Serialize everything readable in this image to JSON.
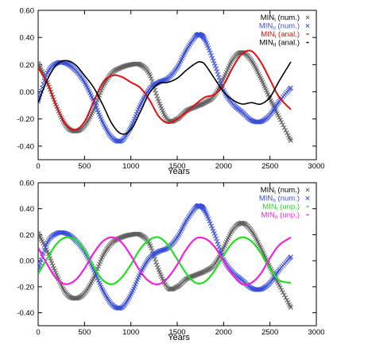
{
  "chart_data": [
    {
      "type": "line",
      "xlabel": "Years",
      "xlim": [
        0,
        3000
      ],
      "ylim": [
        -0.5,
        0.6
      ],
      "xticks": [
        0,
        500,
        1000,
        1500,
        2000,
        2500,
        3000
      ],
      "yticks": [
        -0.4,
        -0.2,
        0.0,
        0.2,
        0.4,
        0.6
      ],
      "xtick_labels": [
        "0",
        "500",
        "1000",
        "1500",
        "2000",
        "2500",
        "3000"
      ],
      "ytick_labels": [
        "-0.40",
        "-0.20",
        "0.00",
        "0.20",
        "0.40",
        "0.60"
      ],
      "legend_placement": "top-right",
      "grid": false,
      "series": [
        {
          "name": "MIN_I (num.)",
          "name_main": "MIN",
          "name_sub": "I",
          "name_suffix": " (num.)",
          "style": "markers",
          "marker": "×",
          "color": "#606060",
          "x": [
            0,
            100,
            200,
            300,
            400,
            500,
            600,
            700,
            800,
            900,
            1000,
            1100,
            1200,
            1300,
            1400,
            1500,
            1600,
            1700,
            1800,
            1900,
            2000,
            2100,
            2200,
            2300,
            2400,
            2500,
            2600,
            2725
          ],
          "y": [
            0.21,
            0.07,
            -0.11,
            -0.25,
            -0.29,
            -0.25,
            -0.13,
            0.04,
            0.14,
            0.18,
            0.2,
            0.2,
            0.13,
            -0.07,
            -0.21,
            -0.2,
            -0.14,
            -0.11,
            -0.08,
            -0.03,
            0.1,
            0.24,
            0.29,
            0.23,
            0.1,
            -0.05,
            -0.19,
            -0.36
          ]
        },
        {
          "name": "MIN_II (num.)",
          "name_main": "MIN",
          "name_sub": "II",
          "name_suffix": " (num.)",
          "style": "markers",
          "marker": "×",
          "color": "#3a4fd8",
          "x": [
            0,
            100,
            200,
            300,
            400,
            500,
            600,
            700,
            800,
            900,
            1000,
            1100,
            1200,
            1300,
            1400,
            1500,
            1600,
            1700,
            1750,
            1800,
            1900,
            2000,
            2100,
            2200,
            2300,
            2400,
            2500,
            2600,
            2725
          ],
          "y": [
            -0.07,
            0.14,
            0.21,
            0.21,
            0.16,
            0.07,
            -0.07,
            -0.23,
            -0.34,
            -0.36,
            -0.26,
            -0.1,
            0.02,
            0.07,
            0.1,
            0.18,
            0.31,
            0.41,
            0.42,
            0.38,
            0.21,
            0.01,
            -0.09,
            -0.15,
            -0.21,
            -0.22,
            -0.17,
            -0.07,
            0.03
          ]
        },
        {
          "name": "MIN_I (anal.)",
          "name_main": "MIN",
          "name_sub": "I",
          "name_suffix": " (anal.)",
          "style": "line",
          "color": "#e01010",
          "width": 2.0,
          "x": [
            0,
            100,
            200,
            300,
            400,
            500,
            600,
            700,
            800,
            900,
            1000,
            1100,
            1200,
            1300,
            1400,
            1500,
            1600,
            1700,
            1800,
            1900,
            2000,
            2100,
            2200,
            2300,
            2400,
            2500,
            2600,
            2725
          ],
          "y": [
            0.18,
            0.06,
            -0.11,
            -0.24,
            -0.28,
            -0.22,
            -0.07,
            0.07,
            0.12,
            0.11,
            0.07,
            0.03,
            -0.06,
            -0.18,
            -0.23,
            -0.2,
            -0.15,
            -0.09,
            -0.04,
            -0.02,
            0.05,
            0.18,
            0.28,
            0.3,
            0.22,
            0.09,
            -0.04,
            -0.13
          ]
        },
        {
          "name": "MIN_II (anal.)",
          "name_main": "MIN",
          "name_sub": "II",
          "name_suffix": " (anal.)",
          "style": "line",
          "color": "#000000",
          "width": 1.6,
          "x": [
            0,
            100,
            200,
            300,
            400,
            500,
            600,
            700,
            800,
            900,
            1000,
            1100,
            1200,
            1300,
            1400,
            1500,
            1600,
            1700,
            1750,
            1800,
            1900,
            2000,
            2100,
            2200,
            2300,
            2400,
            2500,
            2600,
            2725
          ],
          "y": [
            -0.08,
            0.09,
            0.2,
            0.23,
            0.2,
            0.12,
            0.03,
            -0.1,
            -0.24,
            -0.31,
            -0.28,
            -0.15,
            -0.01,
            0.06,
            0.07,
            0.1,
            0.16,
            0.21,
            0.22,
            0.2,
            0.1,
            0.0,
            -0.06,
            -0.09,
            -0.08,
            -0.09,
            -0.04,
            0.08,
            0.22
          ]
        }
      ]
    },
    {
      "type": "line",
      "xlabel": "Years",
      "xlim": [
        0,
        3000
      ],
      "ylim": [
        -0.5,
        0.6
      ],
      "xticks": [
        0,
        500,
        1000,
        1500,
        2000,
        2500,
        3000
      ],
      "yticks": [
        -0.4,
        -0.2,
        0.0,
        0.2,
        0.4,
        0.6
      ],
      "xtick_labels": [
        "0",
        "500",
        "1000",
        "1500",
        "2000",
        "2500",
        "3000"
      ],
      "ytick_labels": [
        "-0.40",
        "-0.20",
        "0.00",
        "0.20",
        "0.40",
        "0.60"
      ],
      "legend_placement": "top-right",
      "grid": false,
      "series": [
        {
          "name": "MIN_I (num.)",
          "name_main": "MIN",
          "name_sub": "I",
          "name_suffix": " (num.)",
          "style": "markers",
          "marker": "×",
          "color": "#606060",
          "x": [
            0,
            100,
            200,
            300,
            400,
            500,
            600,
            700,
            800,
            900,
            1000,
            1100,
            1200,
            1300,
            1400,
            1500,
            1600,
            1700,
            1800,
            1900,
            2000,
            2100,
            2200,
            2300,
            2400,
            2500,
            2600,
            2725
          ],
          "y": [
            0.21,
            0.07,
            -0.11,
            -0.25,
            -0.29,
            -0.25,
            -0.13,
            0.04,
            0.14,
            0.18,
            0.2,
            0.2,
            0.13,
            -0.07,
            -0.21,
            -0.2,
            -0.14,
            -0.11,
            -0.08,
            -0.03,
            0.1,
            0.24,
            0.29,
            0.23,
            0.1,
            -0.05,
            -0.19,
            -0.36
          ]
        },
        {
          "name": "MIN_II (num.)",
          "name_main": "MIN",
          "name_sub": "II",
          "name_suffix": " (num.)",
          "style": "markers",
          "marker": "×",
          "color": "#3a4fd8",
          "x": [
            0,
            100,
            200,
            300,
            400,
            500,
            600,
            700,
            800,
            900,
            1000,
            1100,
            1200,
            1300,
            1400,
            1500,
            1600,
            1700,
            1750,
            1800,
            1900,
            2000,
            2100,
            2200,
            2300,
            2400,
            2500,
            2600,
            2725
          ],
          "y": [
            -0.07,
            0.14,
            0.21,
            0.21,
            0.16,
            0.07,
            -0.07,
            -0.23,
            -0.34,
            -0.36,
            -0.26,
            -0.1,
            0.02,
            0.07,
            0.1,
            0.18,
            0.31,
            0.41,
            0.42,
            0.38,
            0.21,
            0.01,
            -0.09,
            -0.15,
            -0.21,
            -0.22,
            -0.17,
            -0.07,
            0.03
          ]
        },
        {
          "name": "MIN_I (unp.)",
          "name_main": "MIN",
          "name_sub": "I",
          "name_suffix": " (unp.)",
          "style": "line",
          "color": "#22dd22",
          "width": 2.2,
          "x": [
            0,
            100,
            200,
            300,
            400,
            500,
            600,
            700,
            800,
            900,
            1000,
            1100,
            1200,
            1300,
            1400,
            1500,
            1600,
            1700,
            1800,
            1900,
            2000,
            2100,
            2200,
            2300,
            2400,
            2500,
            2600,
            2725
          ],
          "y": [
            -0.1,
            0.02,
            0.13,
            0.18,
            0.16,
            0.08,
            -0.05,
            -0.15,
            -0.18,
            -0.13,
            -0.03,
            0.09,
            0.16,
            0.18,
            0.12,
            0.01,
            -0.1,
            -0.17,
            -0.16,
            -0.08,
            0.04,
            0.14,
            0.18,
            0.15,
            0.06,
            -0.06,
            -0.15,
            -0.17
          ]
        },
        {
          "name": "MIN_II (unp.)",
          "name_main": "MIN",
          "name_sub": "II",
          "name_suffix": " (unp.)",
          "style": "line",
          "color": "#ee22dd",
          "width": 2.2,
          "x": [
            0,
            100,
            200,
            300,
            400,
            500,
            600,
            700,
            800,
            900,
            1000,
            1100,
            1200,
            1300,
            1400,
            1500,
            1600,
            1700,
            1800,
            1900,
            2000,
            2100,
            2200,
            2300,
            2400,
            2500,
            2600,
            2725
          ],
          "y": [
            0.1,
            -0.03,
            -0.14,
            -0.18,
            -0.15,
            -0.06,
            0.06,
            0.15,
            0.18,
            0.14,
            0.04,
            -0.08,
            -0.16,
            -0.18,
            -0.13,
            -0.03,
            0.09,
            0.17,
            0.17,
            0.11,
            0.0,
            -0.11,
            -0.18,
            -0.17,
            -0.1,
            0.02,
            0.12,
            0.18
          ]
        }
      ]
    }
  ]
}
